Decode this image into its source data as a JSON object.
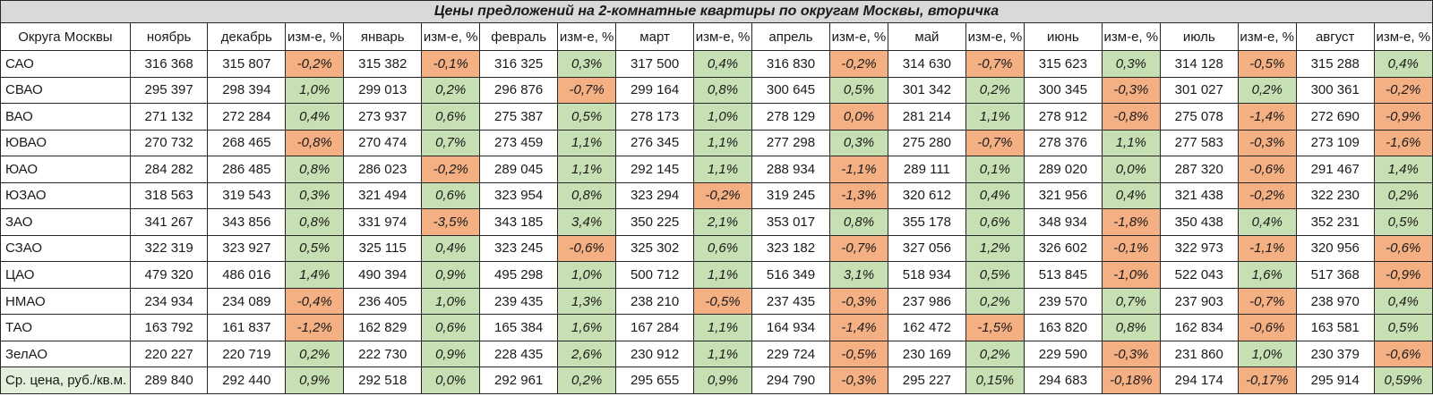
{
  "title": "Цены предложений на 2-комнатные квартиры по округам Москвы, вторичка",
  "colors": {
    "positive_bg": "#c6e0b4",
    "negative_bg": "#f4b083",
    "title_bg": "#d9d9d9",
    "total_label_bg": "#e2efda"
  },
  "table": {
    "region_header": "Округа Москвы",
    "change_header": "изм-е, %",
    "months": [
      "ноябрь",
      "декабрь",
      "январь",
      "февраль",
      "март",
      "апрель",
      "май",
      "июнь",
      "июль",
      "август"
    ],
    "rows": [
      {
        "region": "САО",
        "prices": [
          "316 368",
          "315 807",
          "315 382",
          "316 325",
          "317 500",
          "316 830",
          "314 630",
          "315 623",
          "314 128",
          "315 288"
        ],
        "changes": [
          {
            "v": "-0,2%",
            "s": "down"
          },
          {
            "v": "-0,1%",
            "s": "down"
          },
          {
            "v": "0,3%",
            "s": "up"
          },
          {
            "v": "0,4%",
            "s": "up"
          },
          {
            "v": "-0,2%",
            "s": "down"
          },
          {
            "v": "-0,7%",
            "s": "down"
          },
          {
            "v": "0,3%",
            "s": "up"
          },
          {
            "v": "-0,5%",
            "s": "down"
          },
          {
            "v": "0,4%",
            "s": "up"
          }
        ]
      },
      {
        "region": "СВАО",
        "prices": [
          "295 397",
          "298 394",
          "299 013",
          "296 876",
          "299 164",
          "300 645",
          "301 342",
          "300 345",
          "301 027",
          "300 361"
        ],
        "changes": [
          {
            "v": "1,0%",
            "s": "up"
          },
          {
            "v": "0,2%",
            "s": "up"
          },
          {
            "v": "-0,7%",
            "s": "down"
          },
          {
            "v": "0,8%",
            "s": "up"
          },
          {
            "v": "0,5%",
            "s": "up"
          },
          {
            "v": "0,2%",
            "s": "up"
          },
          {
            "v": "-0,3%",
            "s": "down"
          },
          {
            "v": "0,2%",
            "s": "up"
          },
          {
            "v": "-0,2%",
            "s": "down"
          }
        ]
      },
      {
        "region": "ВАО",
        "prices": [
          "271 132",
          "272 284",
          "273 937",
          "275 387",
          "278 173",
          "278 129",
          "281 214",
          "278 912",
          "275 078",
          "272 690"
        ],
        "changes": [
          {
            "v": "0,4%",
            "s": "up"
          },
          {
            "v": "0,6%",
            "s": "up"
          },
          {
            "v": "0,5%",
            "s": "up"
          },
          {
            "v": "1,0%",
            "s": "up"
          },
          {
            "v": "0,0%",
            "s": "down"
          },
          {
            "v": "1,1%",
            "s": "up"
          },
          {
            "v": "-0,8%",
            "s": "down"
          },
          {
            "v": "-1,4%",
            "s": "down"
          },
          {
            "v": "-0,9%",
            "s": "down"
          }
        ]
      },
      {
        "region": "ЮВАО",
        "prices": [
          "270 732",
          "268 465",
          "270 474",
          "273 459",
          "276 345",
          "277 298",
          "275 280",
          "278 376",
          "277 583",
          "273 109"
        ],
        "changes": [
          {
            "v": "-0,8%",
            "s": "down"
          },
          {
            "v": "0,7%",
            "s": "up"
          },
          {
            "v": "1,1%",
            "s": "up"
          },
          {
            "v": "1,1%",
            "s": "up"
          },
          {
            "v": "0,3%",
            "s": "up"
          },
          {
            "v": "-0,7%",
            "s": "down"
          },
          {
            "v": "1,1%",
            "s": "up"
          },
          {
            "v": "-0,3%",
            "s": "down"
          },
          {
            "v": "-1,6%",
            "s": "down"
          }
        ]
      },
      {
        "region": "ЮАО",
        "prices": [
          "284 282",
          "286 485",
          "286 023",
          "289 045",
          "292 145",
          "288 934",
          "289 111",
          "289 020",
          "287 320",
          "291 467"
        ],
        "changes": [
          {
            "v": "0,8%",
            "s": "up"
          },
          {
            "v": "-0,2%",
            "s": "down"
          },
          {
            "v": "1,1%",
            "s": "up"
          },
          {
            "v": "1,1%",
            "s": "up"
          },
          {
            "v": "-1,1%",
            "s": "down"
          },
          {
            "v": "0,1%",
            "s": "up"
          },
          {
            "v": "0,0%",
            "s": "up"
          },
          {
            "v": "-0,6%",
            "s": "down"
          },
          {
            "v": "1,4%",
            "s": "up"
          }
        ]
      },
      {
        "region": "ЮЗАО",
        "prices": [
          "318 563",
          "319 543",
          "321 494",
          "323 954",
          "323 294",
          "319 245",
          "320 612",
          "321 956",
          "321 438",
          "322 230"
        ],
        "changes": [
          {
            "v": "0,3%",
            "s": "up"
          },
          {
            "v": "0,6%",
            "s": "up"
          },
          {
            "v": "0,8%",
            "s": "up"
          },
          {
            "v": "-0,2%",
            "s": "down"
          },
          {
            "v": "-1,3%",
            "s": "down"
          },
          {
            "v": "0,4%",
            "s": "up"
          },
          {
            "v": "0,4%",
            "s": "up"
          },
          {
            "v": "-0,2%",
            "s": "down"
          },
          {
            "v": "0,2%",
            "s": "up"
          }
        ]
      },
      {
        "region": "ЗАО",
        "prices": [
          "341 267",
          "343 856",
          "331 974",
          "343 185",
          "350 225",
          "353 017",
          "355 178",
          "348 934",
          "350 438",
          "352 231"
        ],
        "changes": [
          {
            "v": "0,8%",
            "s": "up"
          },
          {
            "v": "-3,5%",
            "s": "down"
          },
          {
            "v": "3,4%",
            "s": "up"
          },
          {
            "v": "2,1%",
            "s": "up"
          },
          {
            "v": "0,8%",
            "s": "up"
          },
          {
            "v": "0,6%",
            "s": "up"
          },
          {
            "v": "-1,8%",
            "s": "down"
          },
          {
            "v": "0,4%",
            "s": "up"
          },
          {
            "v": "0,5%",
            "s": "up"
          }
        ]
      },
      {
        "region": "СЗАО",
        "prices": [
          "322 319",
          "323 927",
          "325 115",
          "323 245",
          "325 302",
          "323 182",
          "327 056",
          "326 602",
          "322 973",
          "320 956"
        ],
        "changes": [
          {
            "v": "0,5%",
            "s": "up"
          },
          {
            "v": "0,4%",
            "s": "up"
          },
          {
            "v": "-0,6%",
            "s": "down"
          },
          {
            "v": "0,6%",
            "s": "up"
          },
          {
            "v": "-0,7%",
            "s": "down"
          },
          {
            "v": "1,2%",
            "s": "up"
          },
          {
            "v": "-0,1%",
            "s": "down"
          },
          {
            "v": "-1,1%",
            "s": "down"
          },
          {
            "v": "-0,6%",
            "s": "down"
          }
        ]
      },
      {
        "region": "ЦАО",
        "prices": [
          "479 320",
          "486 016",
          "490 394",
          "495 298",
          "500 712",
          "516 349",
          "518 934",
          "513 845",
          "522 043",
          "517 368"
        ],
        "changes": [
          {
            "v": "1,4%",
            "s": "up"
          },
          {
            "v": "0,9%",
            "s": "up"
          },
          {
            "v": "1,0%",
            "s": "up"
          },
          {
            "v": "1,1%",
            "s": "up"
          },
          {
            "v": "3,1%",
            "s": "up"
          },
          {
            "v": "0,5%",
            "s": "up"
          },
          {
            "v": "-1,0%",
            "s": "down"
          },
          {
            "v": "1,6%",
            "s": "up"
          },
          {
            "v": "-0,9%",
            "s": "down"
          }
        ]
      },
      {
        "region": "НМАО",
        "prices": [
          "234 934",
          "234 089",
          "236 405",
          "239 435",
          "238 210",
          "237 435",
          "237 986",
          "239 570",
          "237 903",
          "238 970"
        ],
        "changes": [
          {
            "v": "-0,4%",
            "s": "down"
          },
          {
            "v": "1,0%",
            "s": "up"
          },
          {
            "v": "1,3%",
            "s": "up"
          },
          {
            "v": "-0,5%",
            "s": "down"
          },
          {
            "v": "-0,3%",
            "s": "down"
          },
          {
            "v": "0,2%",
            "s": "up"
          },
          {
            "v": "0,7%",
            "s": "up"
          },
          {
            "v": "-0,7%",
            "s": "down"
          },
          {
            "v": "0,4%",
            "s": "up"
          }
        ]
      },
      {
        "region": "ТАО",
        "prices": [
          "163 792",
          "161 837",
          "162 829",
          "165 384",
          "167 284",
          "164 934",
          "162 472",
          "163 820",
          "162 834",
          "163 581"
        ],
        "changes": [
          {
            "v": "-1,2%",
            "s": "down"
          },
          {
            "v": "0,6%",
            "s": "up"
          },
          {
            "v": "1,6%",
            "s": "up"
          },
          {
            "v": "1,1%",
            "s": "up"
          },
          {
            "v": "-1,4%",
            "s": "down"
          },
          {
            "v": "-1,5%",
            "s": "down"
          },
          {
            "v": "0,8%",
            "s": "up"
          },
          {
            "v": "-0,6%",
            "s": "down"
          },
          {
            "v": "0,5%",
            "s": "up"
          }
        ]
      },
      {
        "region": "ЗелАО",
        "prices": [
          "220 227",
          "220 719",
          "222 730",
          "228 435",
          "230 912",
          "229 724",
          "230 169",
          "229 590",
          "231 860",
          "230 379"
        ],
        "changes": [
          {
            "v": "0,2%",
            "s": "up"
          },
          {
            "v": "0,9%",
            "s": "up"
          },
          {
            "v": "2,6%",
            "s": "up"
          },
          {
            "v": "1,1%",
            "s": "up"
          },
          {
            "v": "-0,5%",
            "s": "down"
          },
          {
            "v": "0,2%",
            "s": "up"
          },
          {
            "v": "-0,3%",
            "s": "down"
          },
          {
            "v": "1,0%",
            "s": "up"
          },
          {
            "v": "-0,6%",
            "s": "down"
          }
        ]
      },
      {
        "region": "Ср. цена, руб./кв.м.",
        "is_total": true,
        "prices": [
          "289 840",
          "292 440",
          "292 518",
          "292 961",
          "295 655",
          "294 790",
          "295 227",
          "294 683",
          "294 174",
          "295 914"
        ],
        "changes": [
          {
            "v": "0,9%",
            "s": "up"
          },
          {
            "v": "0,0%",
            "s": "up"
          },
          {
            "v": "0,2%",
            "s": "up"
          },
          {
            "v": "0,9%",
            "s": "up"
          },
          {
            "v": "-0,3%",
            "s": "down"
          },
          {
            "v": "0,15%",
            "s": "up"
          },
          {
            "v": "-0,18%",
            "s": "down"
          },
          {
            "v": "-0,17%",
            "s": "down"
          },
          {
            "v": "0,59%",
            "s": "up"
          }
        ]
      }
    ]
  }
}
